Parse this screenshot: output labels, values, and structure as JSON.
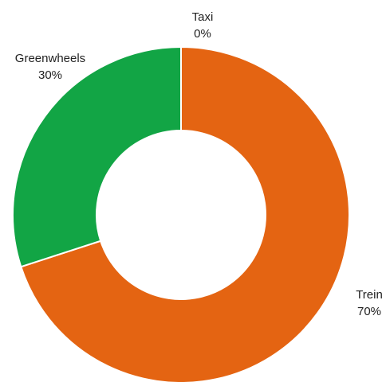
{
  "chart_data": {
    "type": "pie",
    "variant": "donut",
    "start_angle": "top",
    "direction": "clockwise",
    "slices": [
      {
        "label": "Trein",
        "value": 70,
        "value_label": "70%",
        "color": "#e46412"
      },
      {
        "label": "Greenwheels",
        "value": 30,
        "value_label": "30%",
        "color": "#12a545"
      },
      {
        "label": "Taxi",
        "value": 0,
        "value_label": "0%",
        "color": "#ffffff"
      }
    ]
  }
}
